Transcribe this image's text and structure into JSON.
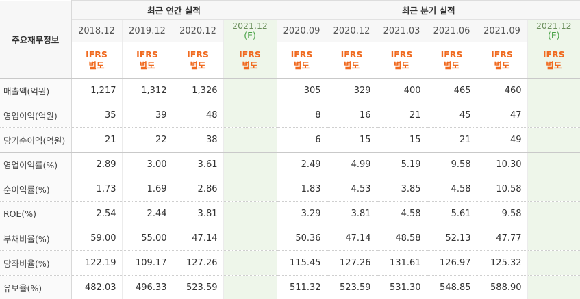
{
  "header": {
    "corner_label": "주요재무정보",
    "annual_group": "최근 연간 실적",
    "quarter_group": "최근 분기 실적",
    "annual_periods": [
      {
        "label": "2018.12",
        "est": ""
      },
      {
        "label": "2019.12",
        "est": ""
      },
      {
        "label": "2020.12",
        "est": ""
      },
      {
        "label": "2021.12",
        "est": "(E)"
      }
    ],
    "quarter_periods": [
      {
        "label": "2020.09",
        "est": ""
      },
      {
        "label": "2020.12",
        "est": ""
      },
      {
        "label": "2021.03",
        "est": ""
      },
      {
        "label": "2021.06",
        "est": ""
      },
      {
        "label": "2021.09",
        "est": ""
      },
      {
        "label": "2021.12",
        "est": "(E)"
      }
    ],
    "accounting_line1": "IFRS",
    "accounting_line2": "별도"
  },
  "colors": {
    "accounting_text": "#f06a1f",
    "estimate_bg": "#eef6ea",
    "estimate_mark": "#45a043"
  },
  "rows": [
    {
      "label": "매출액(억원)",
      "annual": [
        "1,217",
        "1,312",
        "1,326",
        ""
      ],
      "quarter": [
        "305",
        "329",
        "400",
        "465",
        "460",
        ""
      ]
    },
    {
      "label": "영업이익(억원)",
      "annual": [
        "35",
        "39",
        "48",
        ""
      ],
      "quarter": [
        "8",
        "16",
        "21",
        "45",
        "47",
        ""
      ]
    },
    {
      "label": "당기순이익(억원)",
      "annual": [
        "21",
        "22",
        "38",
        ""
      ],
      "quarter": [
        "6",
        "15",
        "15",
        "21",
        "49",
        ""
      ]
    },
    {
      "label": "영업이익률(%)",
      "annual": [
        "2.89",
        "3.00",
        "3.61",
        ""
      ],
      "quarter": [
        "2.49",
        "4.99",
        "5.19",
        "9.58",
        "10.30",
        ""
      ]
    },
    {
      "label": "순이익률(%)",
      "annual": [
        "1.73",
        "1.69",
        "2.86",
        ""
      ],
      "quarter": [
        "1.83",
        "4.53",
        "3.85",
        "4.58",
        "10.58",
        ""
      ]
    },
    {
      "label": "ROE(%)",
      "annual": [
        "2.54",
        "2.44",
        "3.81",
        ""
      ],
      "quarter": [
        "3.29",
        "3.81",
        "4.58",
        "5.61",
        "9.58",
        ""
      ]
    },
    {
      "label": "부채비율(%)",
      "annual": [
        "59.00",
        "55.00",
        "47.14",
        ""
      ],
      "quarter": [
        "50.36",
        "47.14",
        "48.58",
        "52.13",
        "47.77",
        ""
      ]
    },
    {
      "label": "당좌비율(%)",
      "annual": [
        "122.19",
        "109.17",
        "127.26",
        ""
      ],
      "quarter": [
        "115.45",
        "127.26",
        "131.61",
        "126.97",
        "125.32",
        ""
      ]
    },
    {
      "label": "유보율(%)",
      "annual": [
        "482.03",
        "496.33",
        "523.59",
        ""
      ],
      "quarter": [
        "511.32",
        "523.59",
        "531.30",
        "548.85",
        "588.90",
        ""
      ]
    }
  ]
}
